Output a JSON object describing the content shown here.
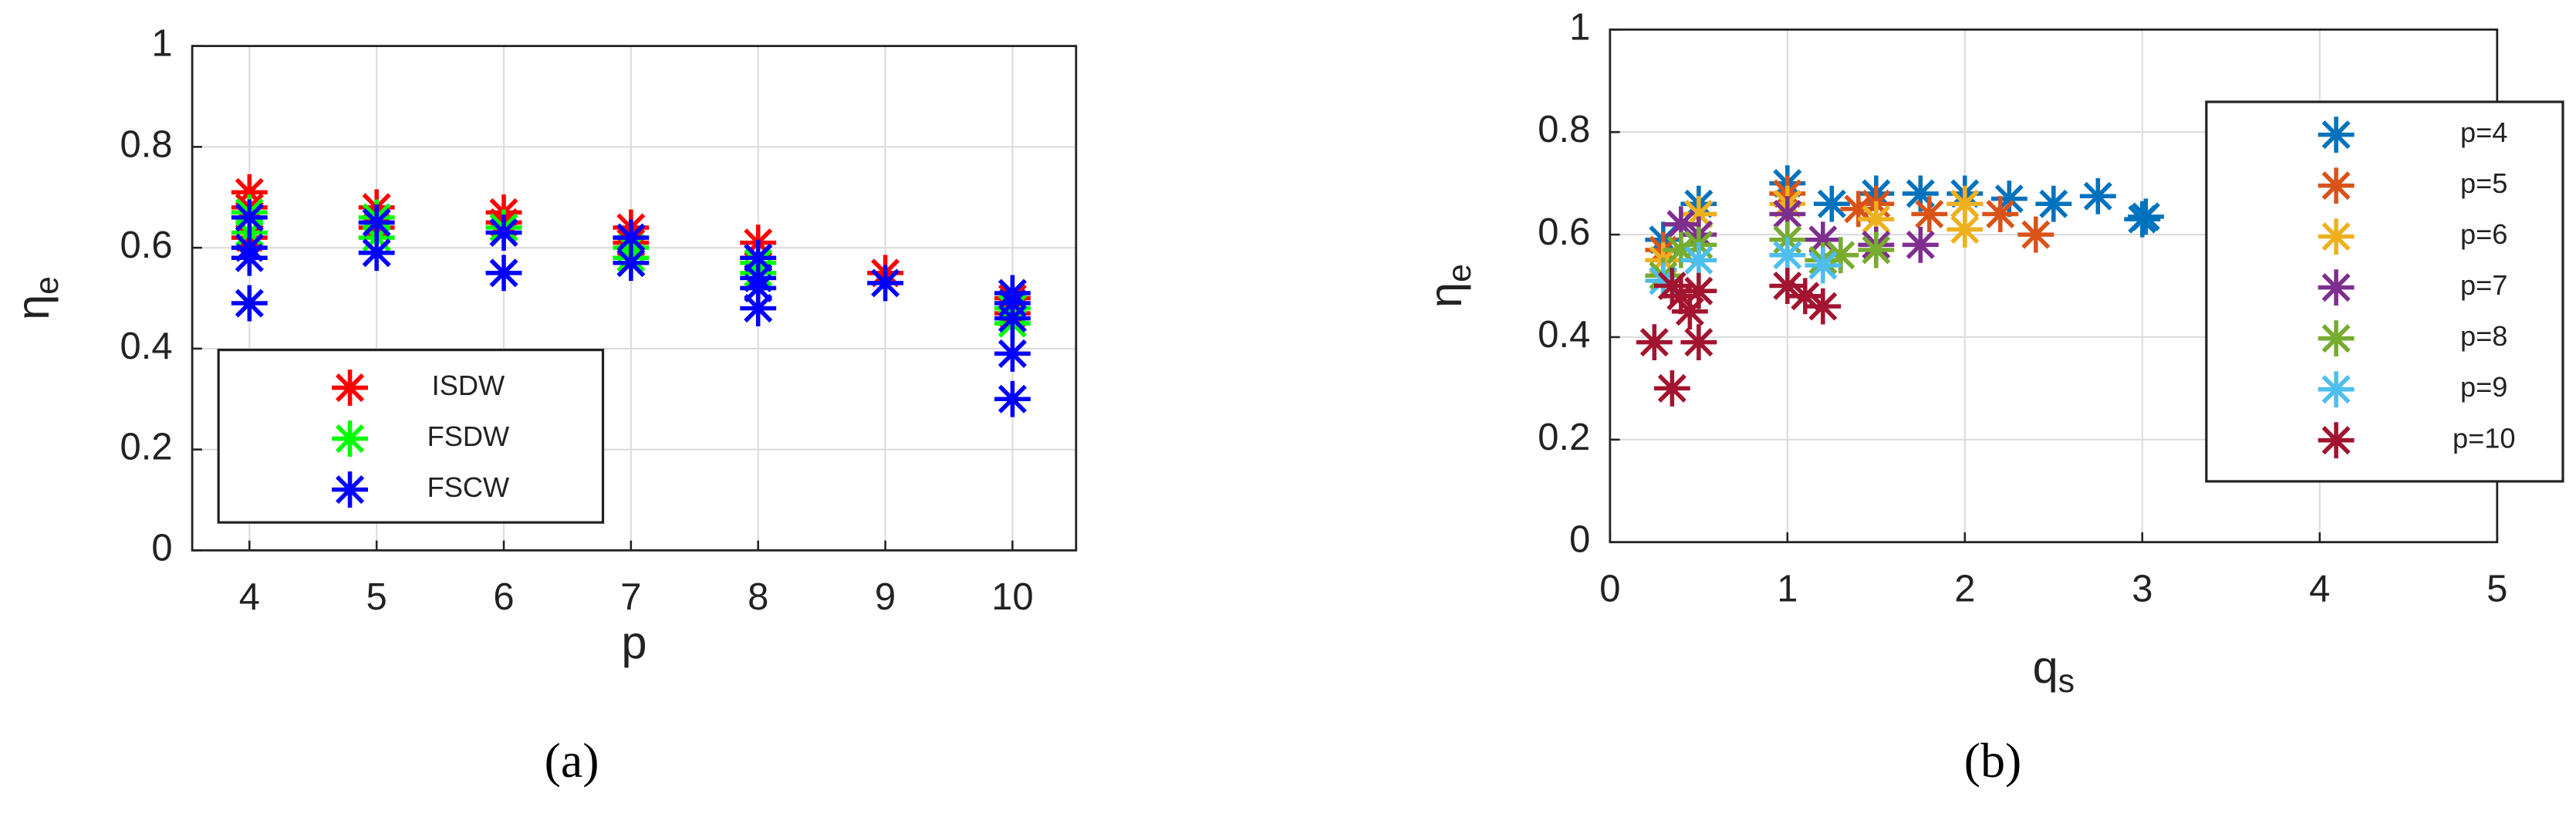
{
  "chart_data": [
    {
      "type": "scatter",
      "caption": "(a)",
      "xlabel": "p",
      "ylabel": "η",
      "ylabel_sub": "e",
      "xlim": [
        3.55,
        10.5
      ],
      "xticks": [
        4,
        5,
        6,
        7,
        8,
        9,
        10
      ],
      "ylim": [
        0,
        1
      ],
      "yticks": [
        0,
        0.2,
        0.4,
        0.6,
        0.8,
        1
      ],
      "grid": true,
      "legend": "lower left",
      "series": [
        {
          "name": "ISDW",
          "color": "#ff0000",
          "x": [
            4,
            4,
            4,
            5,
            5,
            6,
            6,
            7,
            7,
            8,
            8,
            9,
            10,
            10
          ],
          "values": [
            0.71,
            0.68,
            0.62,
            0.68,
            0.64,
            0.67,
            0.65,
            0.64,
            0.61,
            0.61,
            0.58,
            0.55,
            0.5,
            0.47
          ]
        },
        {
          "name": "FSDW",
          "color": "#00ff00",
          "x": [
            4,
            4,
            5,
            5,
            6,
            7,
            7,
            8,
            8,
            10,
            10
          ],
          "values": [
            0.67,
            0.63,
            0.66,
            0.62,
            0.64,
            0.6,
            0.58,
            0.57,
            0.55,
            0.48,
            0.45
          ]
        },
        {
          "name": "FSCW",
          "color": "#0000ff",
          "x": [
            4,
            4,
            4,
            4,
            5,
            5,
            6,
            6,
            7,
            7,
            8,
            8,
            8,
            8,
            9,
            10,
            10,
            10,
            10,
            10
          ],
          "values": [
            0.66,
            0.6,
            0.58,
            0.49,
            0.65,
            0.59,
            0.63,
            0.55,
            0.62,
            0.57,
            0.58,
            0.54,
            0.52,
            0.48,
            0.53,
            0.51,
            0.49,
            0.46,
            0.39,
            0.3
          ]
        }
      ]
    },
    {
      "type": "scatter",
      "caption": "(b)",
      "xlabel": "q",
      "xlabel_sub": "s",
      "ylabel": "η",
      "ylabel_sub": "e",
      "xlim": [
        0,
        5
      ],
      "xticks": [
        0,
        1,
        2,
        3,
        4,
        5
      ],
      "ylim": [
        0,
        1
      ],
      "yticks": [
        0,
        0.2,
        0.4,
        0.6,
        0.8,
        1
      ],
      "grid": true,
      "legend": "right",
      "series": [
        {
          "name": "p=4",
          "color": "#0072bd",
          "x": [
            0.3,
            0.5,
            1.0,
            1.25,
            1.5,
            1.75,
            2.0,
            2.25,
            2.5,
            2.75,
            3.0,
            3.02
          ],
          "values": [
            0.59,
            0.66,
            0.7,
            0.66,
            0.68,
            0.68,
            0.68,
            0.67,
            0.66,
            0.675,
            0.63,
            0.635
          ]
        },
        {
          "name": "p=5",
          "color": "#d95319",
          "x": [
            0.3,
            0.5,
            1.0,
            1.4,
            1.5,
            1.8,
            2.0,
            2.2,
            2.4
          ],
          "values": [
            0.57,
            0.64,
            0.68,
            0.65,
            0.66,
            0.64,
            0.66,
            0.64,
            0.6
          ]
        },
        {
          "name": "p=6",
          "color": "#edb120",
          "x": [
            0.3,
            0.5,
            1.0,
            1.5,
            2.0,
            2.0
          ],
          "values": [
            0.55,
            0.64,
            0.66,
            0.63,
            0.66,
            0.61
          ]
        },
        {
          "name": "p=7",
          "color": "#7e2f8e",
          "x": [
            0.4,
            0.5,
            1.0,
            1.2,
            1.5,
            1.75
          ],
          "values": [
            0.62,
            0.6,
            0.64,
            0.59,
            0.58,
            0.58
          ]
        },
        {
          "name": "p=8",
          "color": "#77ac30",
          "x": [
            0.3,
            0.4,
            0.5,
            1.0,
            1.2,
            1.3,
            1.5
          ],
          "values": [
            0.52,
            0.57,
            0.58,
            0.59,
            0.55,
            0.56,
            0.57
          ]
        },
        {
          "name": "p=9",
          "color": "#4dbeee",
          "x": [
            0.3,
            0.5,
            1.0,
            1.2
          ],
          "values": [
            0.51,
            0.55,
            0.56,
            0.54
          ]
        },
        {
          "name": "p=10",
          "color": "#a2142f",
          "x": [
            0.25,
            0.35,
            0.35,
            0.4,
            0.45,
            0.5,
            0.5,
            1.0,
            1.1,
            1.2
          ],
          "values": [
            0.39,
            0.3,
            0.5,
            0.48,
            0.45,
            0.39,
            0.49,
            0.5,
            0.48,
            0.46
          ]
        }
      ]
    }
  ]
}
